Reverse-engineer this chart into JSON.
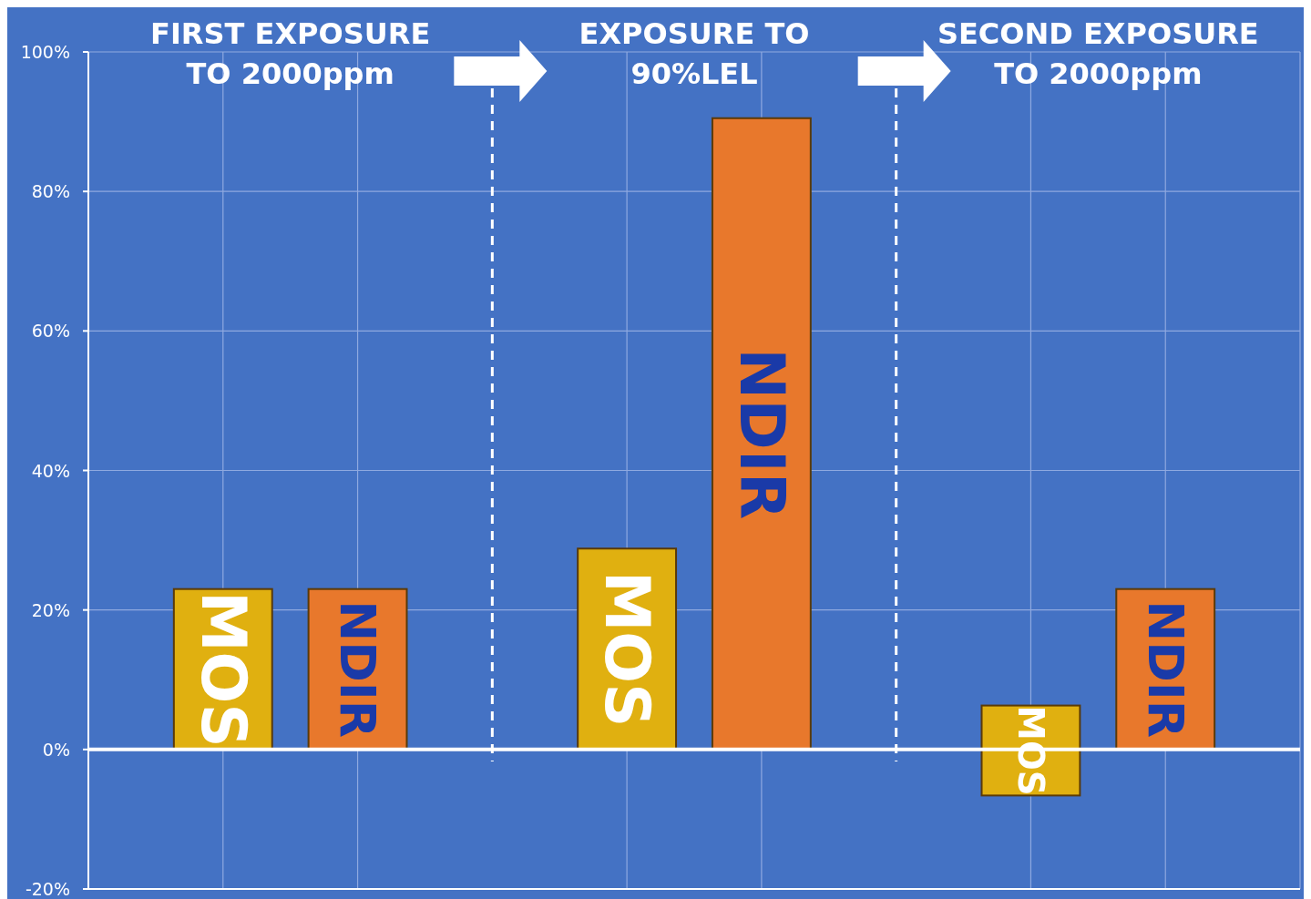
{
  "chart_data": {
    "type": "bar",
    "categories": [
      "FIRST EXPOSURE TO 2000ppm",
      "EXPOSURE TO 90%LEL",
      "SECOND EXPOSURE TO 2000ppm"
    ],
    "ylim": [
      -20,
      100
    ],
    "yticks": [
      {
        "value": -20,
        "label": "-20%"
      },
      {
        "value": 0,
        "label": "0%"
      },
      {
        "value": 20,
        "label": "20%"
      },
      {
        "value": 40,
        "label": "40%"
      },
      {
        "value": 60,
        "label": "60%"
      },
      {
        "value": 80,
        "label": "80%"
      },
      {
        "value": 100,
        "label": "100%"
      }
    ],
    "grid": true,
    "series": [
      {
        "name": "MOS",
        "color": "#e0b010",
        "values": [
          23,
          28.8,
          12.9
        ],
        "base": [
          0,
          0,
          -6.6
        ]
      },
      {
        "name": "NDIR",
        "color": "#e8782c",
        "values": [
          23,
          90.5,
          23
        ],
        "base": [
          0,
          0,
          0
        ]
      }
    ]
  }
}
